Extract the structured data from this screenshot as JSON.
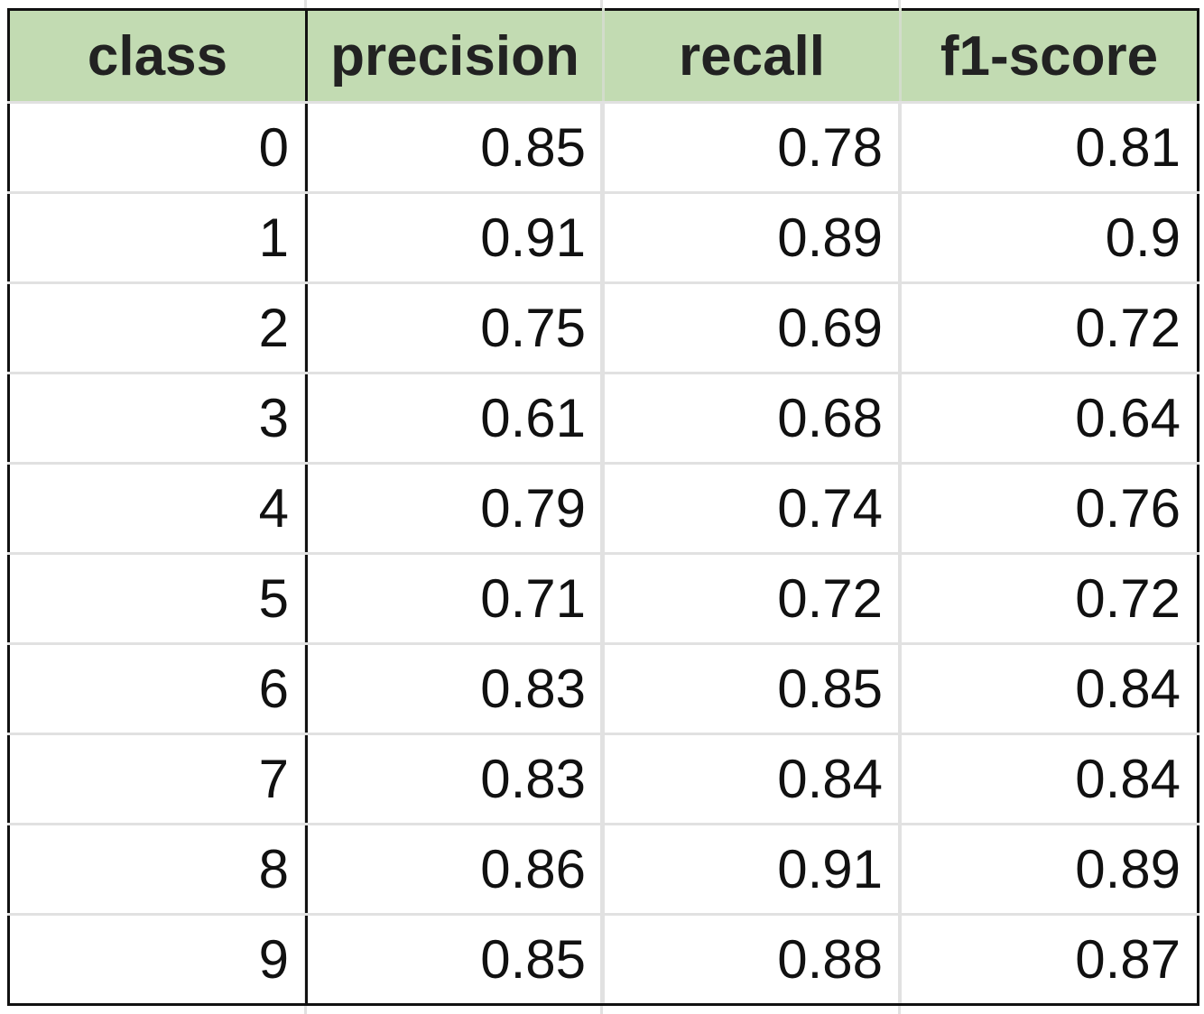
{
  "colors": {
    "header_bg": "#c2dbb2",
    "gridline": "#e1e1e1",
    "border": "#111111"
  },
  "table": {
    "headers": [
      "class",
      "precision",
      "recall",
      "f1-score"
    ],
    "rows": [
      [
        "0",
        "0.85",
        "0.78",
        "0.81"
      ],
      [
        "1",
        "0.91",
        "0.89",
        "0.9"
      ],
      [
        "2",
        "0.75",
        "0.69",
        "0.72"
      ],
      [
        "3",
        "0.61",
        "0.68",
        "0.64"
      ],
      [
        "4",
        "0.79",
        "0.74",
        "0.76"
      ],
      [
        "5",
        "0.71",
        "0.72",
        "0.72"
      ],
      [
        "6",
        "0.83",
        "0.85",
        "0.84"
      ],
      [
        "7",
        "0.83",
        "0.84",
        "0.84"
      ],
      [
        "8",
        "0.86",
        "0.91",
        "0.89"
      ],
      [
        "9",
        "0.85",
        "0.88",
        "0.87"
      ]
    ]
  }
}
